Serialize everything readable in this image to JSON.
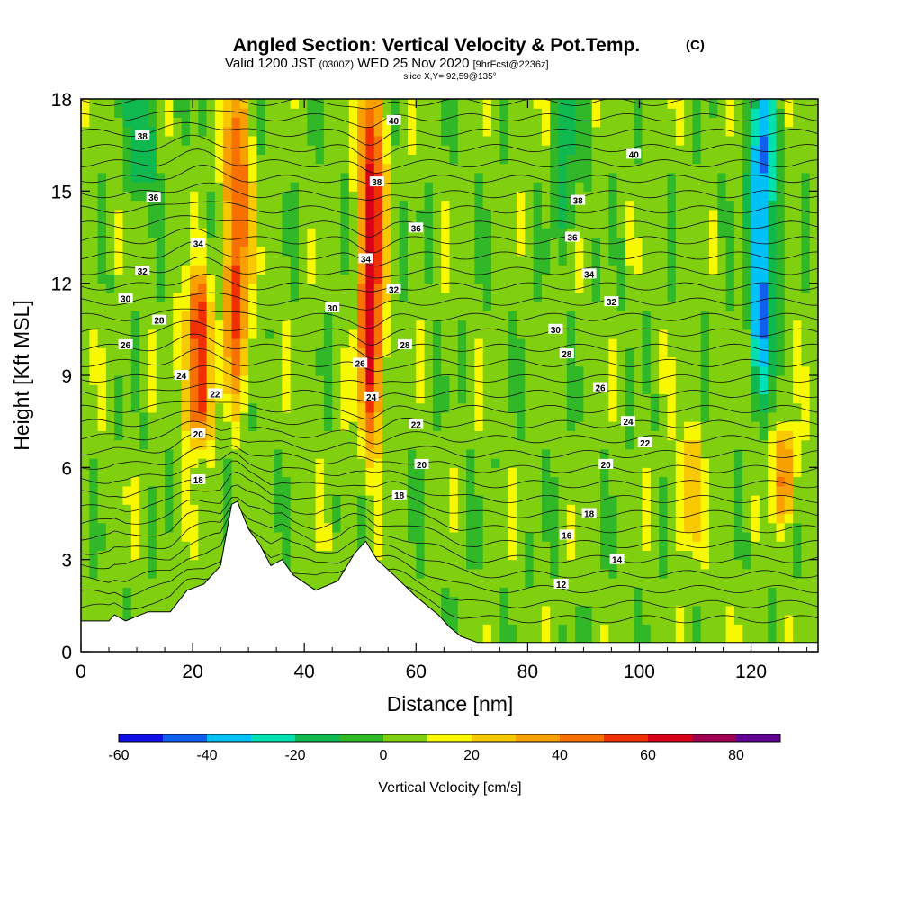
{
  "title": {
    "main": "Angled Section: Vertical Velocity & Pot.Temp.",
    "main_suffix": "(C)",
    "valid_prefix": "Valid 1200 JST",
    "valid_utc": "(0300Z)",
    "valid_date": "WED 25 Nov 2020",
    "forecast": "[9hrFcst@2236z]",
    "slice": "slice X,Y= 92,59@135°"
  },
  "chart_data": {
    "type": "heatmap",
    "xlabel": "Distance [nm]",
    "ylabel": "Height [Kft MSL]",
    "xlim": [
      0,
      132
    ],
    "ylim": [
      0,
      18
    ],
    "x_ticks": [
      "0",
      "20",
      "40",
      "60",
      "80",
      "100",
      "120"
    ],
    "y_ticks": [
      "0",
      "3",
      "6",
      "9",
      "12",
      "15",
      "18"
    ],
    "updraft_cores": [
      {
        "x": 21,
        "y_bottom": 7.5,
        "y_top": 11.5,
        "peak_cm_s": 60
      },
      {
        "x": 28,
        "y_bottom": 9.0,
        "y_top": 18.0,
        "peak_cm_s": 50
      },
      {
        "x": 52,
        "y_bottom": 7.5,
        "y_top": 18.0,
        "peak_cm_s": 65
      },
      {
        "x": 109,
        "y_bottom": 4.0,
        "y_top": 6.5,
        "peak_cm_s": 25
      },
      {
        "x": 126,
        "y_bottom": 5.0,
        "y_top": 6.5,
        "peak_cm_s": 35
      }
    ],
    "downdraft_cores": [
      {
        "x": 11,
        "y_bottom": 15.5,
        "y_top": 18.0,
        "peak_cm_s": -25
      },
      {
        "x": 122,
        "y_bottom": 9.5,
        "y_top": 18.0,
        "peak_cm_s": -50
      },
      {
        "x": 87,
        "y_bottom": 14.0,
        "y_top": 18.0,
        "peak_cm_s": -18
      }
    ],
    "terrain_kft": [
      [
        0,
        1.0
      ],
      [
        5,
        1.0
      ],
      [
        6,
        1.2
      ],
      [
        8,
        1.0
      ],
      [
        12,
        1.3
      ],
      [
        16,
        1.3
      ],
      [
        19,
        2.0
      ],
      [
        22,
        2.2
      ],
      [
        25,
        2.8
      ],
      [
        27,
        4.8
      ],
      [
        28,
        4.9
      ],
      [
        30,
        4.0
      ],
      [
        32,
        3.5
      ],
      [
        34,
        2.8
      ],
      [
        36,
        3.0
      ],
      [
        38,
        2.5
      ],
      [
        42,
        2.0
      ],
      [
        46,
        2.3
      ],
      [
        49,
        3.2
      ],
      [
        51,
        3.6
      ],
      [
        53,
        3.0
      ],
      [
        56,
        2.5
      ],
      [
        60,
        1.8
      ],
      [
        64,
        1.2
      ],
      [
        66,
        0.8
      ],
      [
        68,
        0.5
      ],
      [
        71,
        0.3
      ],
      [
        132,
        0.3
      ]
    ],
    "theta_contour_labels": [
      {
        "text": "38",
        "x": 11,
        "y": 16.8
      },
      {
        "text": "36",
        "x": 13,
        "y": 14.8
      },
      {
        "text": "34",
        "x": 21,
        "y": 13.3
      },
      {
        "text": "32",
        "x": 11,
        "y": 12.4
      },
      {
        "text": "30",
        "x": 8,
        "y": 11.5
      },
      {
        "text": "28",
        "x": 14,
        "y": 10.8
      },
      {
        "text": "26",
        "x": 8,
        "y": 10.0
      },
      {
        "text": "24",
        "x": 18,
        "y": 9.0
      },
      {
        "text": "22",
        "x": 24,
        "y": 8.4
      },
      {
        "text": "20",
        "x": 21,
        "y": 7.1
      },
      {
        "text": "18",
        "x": 21,
        "y": 5.6
      },
      {
        "text": "40",
        "x": 56,
        "y": 17.3
      },
      {
        "text": "38",
        "x": 53,
        "y": 15.3
      },
      {
        "text": "36",
        "x": 60,
        "y": 13.8
      },
      {
        "text": "34",
        "x": 51,
        "y": 12.8
      },
      {
        "text": "32",
        "x": 56,
        "y": 11.8
      },
      {
        "text": "30",
        "x": 45,
        "y": 11.2
      },
      {
        "text": "28",
        "x": 58,
        "y": 10.0
      },
      {
        "text": "26",
        "x": 50,
        "y": 9.4
      },
      {
        "text": "24",
        "x": 52,
        "y": 8.3
      },
      {
        "text": "22",
        "x": 60,
        "y": 7.4
      },
      {
        "text": "20",
        "x": 61,
        "y": 6.1
      },
      {
        "text": "18",
        "x": 57,
        "y": 5.1
      },
      {
        "text": "40",
        "x": 99,
        "y": 16.2
      },
      {
        "text": "38",
        "x": 89,
        "y": 14.7
      },
      {
        "text": "36",
        "x": 88,
        "y": 13.5
      },
      {
        "text": "34",
        "x": 91,
        "y": 12.3
      },
      {
        "text": "32",
        "x": 95,
        "y": 11.4
      },
      {
        "text": "30",
        "x": 85,
        "y": 10.5
      },
      {
        "text": "28",
        "x": 87,
        "y": 9.7
      },
      {
        "text": "26",
        "x": 93,
        "y": 8.6
      },
      {
        "text": "24",
        "x": 98,
        "y": 7.5
      },
      {
        "text": "22",
        "x": 101,
        "y": 6.8
      },
      {
        "text": "20",
        "x": 94,
        "y": 6.1
      },
      {
        "text": "18",
        "x": 91,
        "y": 4.5
      },
      {
        "text": "16",
        "x": 87,
        "y": 3.8
      },
      {
        "text": "14",
        "x": 96,
        "y": 3.0
      },
      {
        "text": "12",
        "x": 86,
        "y": 2.2
      }
    ]
  },
  "colorbar": {
    "label": "Vertical Velocity [cm/s]",
    "tick_labels": [
      "-60",
      "-40",
      "-20",
      "0",
      "20",
      "40",
      "60",
      "80"
    ],
    "tick_values": [
      -60,
      -40,
      -20,
      0,
      20,
      40,
      60,
      80
    ],
    "range": [
      -60,
      90
    ],
    "colors": [
      "#1010e8",
      "#1060f0",
      "#00c0f8",
      "#00e0b0",
      "#10b850",
      "#30b828",
      "#80d010",
      "#f8f800",
      "#f8c800",
      "#f8a000",
      "#f87000",
      "#f03000",
      "#d80018",
      "#a00050",
      "#600090"
    ]
  }
}
